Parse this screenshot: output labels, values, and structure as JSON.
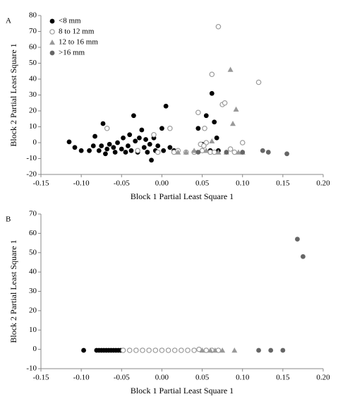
{
  "chart_data": [
    {
      "type": "scatter",
      "label": "A",
      "xlabel": "Block 1 Partial Least Square 1",
      "ylabel": "Block 2 Partial Least Square 1",
      "xlim": [
        -0.15,
        0.2
      ],
      "ylim": [
        -20,
        80
      ],
      "xticks": [
        {
          "value": -0.15,
          "label": "-0.15"
        },
        {
          "value": -0.1,
          "label": "-0.10"
        },
        {
          "value": -0.05,
          "label": "-0.05"
        },
        {
          "value": 0.0,
          "label": "0.00"
        },
        {
          "value": 0.05,
          "label": "0.05"
        },
        {
          "value": 0.1,
          "label": "0.10"
        },
        {
          "value": 0.15,
          "label": "0.15"
        },
        {
          "value": 0.2,
          "label": "0.20"
        }
      ],
      "yticks": [
        -20,
        -10,
        0,
        10,
        20,
        30,
        40,
        50,
        60,
        70,
        80
      ],
      "legend": "upper left",
      "series": [
        {
          "name": "<8 mm",
          "color": "#000000",
          "marker": "circle",
          "x": [
            -0.115,
            -0.108,
            -0.1,
            -0.09,
            -0.085,
            -0.083,
            -0.078,
            -0.075,
            -0.073,
            -0.07,
            -0.068,
            -0.065,
            -0.06,
            -0.058,
            -0.055,
            -0.05,
            -0.048,
            -0.045,
            -0.042,
            -0.04,
            -0.038,
            -0.035,
            -0.033,
            -0.03,
            -0.028,
            -0.025,
            -0.022,
            -0.02,
            -0.018,
            -0.015,
            -0.013,
            -0.01,
            -0.008,
            -0.005,
            0.0,
            0.002,
            0.005,
            0.01,
            0.015,
            0.045,
            0.05,
            0.055,
            0.062,
            0.065,
            0.068,
            0.07,
            0.06
          ],
          "values": [
            0.5,
            -3,
            -5,
            -5,
            -2,
            4,
            -5,
            -2,
            12,
            -7,
            -4,
            -1,
            -3,
            -6,
            0,
            -4,
            3,
            -6,
            -2,
            5,
            -5,
            17,
            1,
            -6,
            3,
            8,
            -3,
            2,
            -6,
            -1,
            -11,
            3,
            -5,
            -2,
            9,
            -5,
            23,
            -3,
            -5,
            9,
            -1,
            17,
            31,
            13,
            3,
            -5,
            -5
          ]
        },
        {
          "name": "8 to 12 mm",
          "color": "#999999",
          "marker": "open-circle",
          "x": [
            -0.068,
            -0.03,
            -0.01,
            -0.005,
            0.01,
            0.015,
            0.02,
            0.03,
            0.04,
            0.045,
            0.048,
            0.05,
            0.053,
            0.055,
            0.06,
            0.062,
            0.07,
            0.075,
            0.078,
            0.085,
            0.09,
            0.1,
            0.12,
            0.065,
            0.052
          ],
          "values": [
            9,
            -5,
            5,
            -6,
            9,
            -6,
            -5,
            -6,
            -6,
            19,
            -1,
            -5,
            9,
            0,
            -6,
            43,
            73,
            24,
            25,
            -4,
            -6,
            0,
            38,
            -6,
            -2
          ]
        },
        {
          "name": "12 to 16 mm",
          "color": "#999999",
          "marker": "triangle",
          "x": [
            0.02,
            0.03,
            0.04,
            0.055,
            0.062,
            0.07,
            0.08,
            0.085,
            0.088,
            0.092,
            0.095,
            0.1
          ],
          "values": [
            -6,
            -6,
            -5,
            -5,
            1,
            -6,
            -6,
            46,
            12,
            21,
            -6,
            -6
          ]
        },
        {
          "name": ">16 mm",
          "color": "#666666",
          "marker": "circle",
          "x": [
            0.045,
            0.08,
            0.1,
            0.125,
            0.132,
            0.155
          ],
          "values": [
            -6,
            -6,
            -6,
            -5,
            -6,
            -7
          ]
        }
      ]
    },
    {
      "type": "scatter",
      "label": "B",
      "xlabel": "Block 1 Partial Least Square 1",
      "ylabel": "Block 2 Partial Least Square 1",
      "xlim": [
        -0.15,
        0.2
      ],
      "ylim": [
        -10,
        70
      ],
      "xticks": [
        {
          "value": -0.15,
          "label": "-0.15"
        },
        {
          "value": -0.1,
          "label": "-0.10"
        },
        {
          "value": -0.05,
          "label": "-0.05"
        },
        {
          "value": 0.0,
          "label": "0.00"
        },
        {
          "value": 0.05,
          "label": "0.05"
        },
        {
          "value": 0.1,
          "label": "0.10"
        },
        {
          "value": 0.15,
          "label": "0.15"
        },
        {
          "value": 0.2,
          "label": "0.20"
        }
      ],
      "yticks": [
        -10,
        0,
        10,
        20,
        30,
        40,
        50,
        60,
        70
      ],
      "series": [
        {
          "name": "<8 mm",
          "color": "#000000",
          "marker": "circle",
          "x": [
            -0.097,
            -0.081,
            -0.078,
            -0.075,
            -0.072,
            -0.069,
            -0.066,
            -0.063,
            -0.06,
            -0.057,
            -0.054,
            -0.051
          ],
          "values": [
            -0.5,
            -0.5,
            -0.5,
            -0.5,
            -0.5,
            -0.5,
            -0.5,
            -0.5,
            -0.5,
            -0.5,
            -0.5,
            -0.5
          ]
        },
        {
          "name": "8 to 12 mm",
          "color": "#999999",
          "marker": "open-circle",
          "x": [
            -0.048,
            -0.04,
            -0.032,
            -0.024,
            -0.016,
            -0.008,
            0.0,
            0.008,
            0.016,
            0.024,
            0.032,
            0.04,
            0.046,
            0.055,
            0.062,
            0.07
          ],
          "values": [
            -0.5,
            -0.5,
            -0.5,
            -0.5,
            -0.5,
            -0.5,
            -0.5,
            -0.5,
            -0.5,
            -0.5,
            -0.5,
            -0.5,
            0,
            -0.5,
            -0.5,
            -0.5
          ]
        },
        {
          "name": "12 to 16 mm",
          "color": "#999999",
          "marker": "triangle",
          "x": [
            0.05,
            0.06,
            0.066,
            0.075,
            0.09
          ],
          "values": [
            -0.5,
            -0.5,
            -0.5,
            -0.5,
            -0.5
          ]
        },
        {
          "name": ">16 mm",
          "color": "#666666",
          "marker": "circle",
          "x": [
            0.12,
            0.135,
            0.15,
            0.168,
            0.175
          ],
          "values": [
            -0.5,
            -0.5,
            -0.5,
            57,
            48
          ]
        }
      ]
    }
  ]
}
